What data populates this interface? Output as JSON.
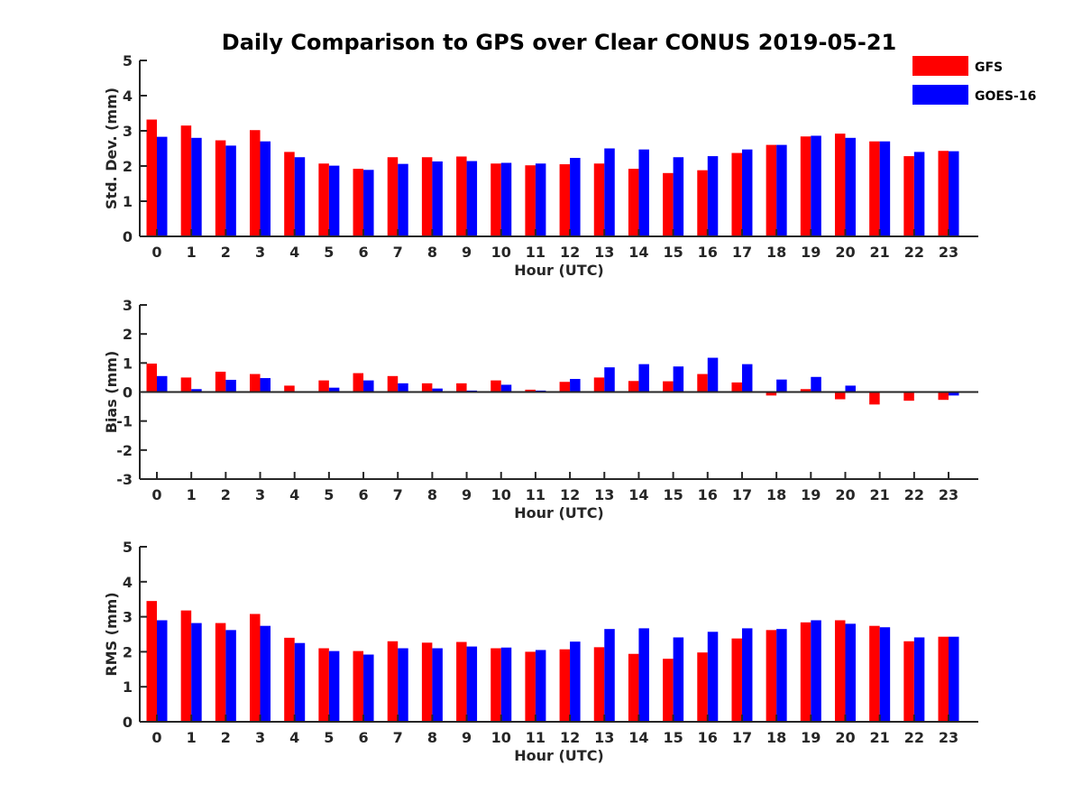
{
  "chart_data": {
    "title": "Daily Comparison to GPS over Clear CONUS 2019-05-21",
    "type": "bar",
    "colors": {
      "GFS": "#ff0000",
      "GOES-16": "#0000ff"
    },
    "legend": {
      "entries": [
        "GFS",
        "GOES-16"
      ],
      "placement": "top-right"
    },
    "panels": [
      {
        "type": "bar",
        "xlabel": "Hour (UTC)",
        "ylabel": "Std. Dev. (mm)",
        "ylim": [
          0,
          5
        ],
        "yticks": [
          "0",
          "1",
          "2",
          "3",
          "4",
          "5"
        ],
        "categories": [
          "0",
          "1",
          "2",
          "3",
          "4",
          "5",
          "6",
          "7",
          "8",
          "9",
          "10",
          "11",
          "12",
          "13",
          "14",
          "15",
          "16",
          "17",
          "18",
          "19",
          "20",
          "21",
          "22",
          "23"
        ],
        "series": [
          {
            "name": "GFS",
            "values": [
              3.32,
              3.15,
              2.73,
              3.02,
              2.4,
              2.07,
              1.92,
              2.25,
              2.25,
              2.27,
              2.07,
              2.02,
              2.05,
              2.07,
              1.92,
              1.8,
              1.88,
              2.37,
              2.6,
              2.84,
              2.92,
              2.7,
              2.28,
              2.43
            ]
          },
          {
            "name": "GOES-16",
            "values": [
              2.83,
              2.8,
              2.58,
              2.7,
              2.25,
              2.01,
              1.89,
              2.06,
              2.13,
              2.14,
              2.09,
              2.07,
              2.23,
              2.5,
              2.47,
              2.25,
              2.28,
              2.47,
              2.6,
              2.86,
              2.8,
              2.7,
              2.4,
              2.42
            ]
          }
        ]
      },
      {
        "type": "bar",
        "xlabel": "Hour (UTC)",
        "ylabel": "Bias (mm)",
        "ylim": [
          -3,
          3
        ],
        "yticks": [
          "-3",
          "-2",
          "-1",
          "0",
          "1",
          "2",
          "3"
        ],
        "categories": [
          "0",
          "1",
          "2",
          "3",
          "4",
          "5",
          "6",
          "7",
          "8",
          "9",
          "10",
          "11",
          "12",
          "13",
          "14",
          "15",
          "16",
          "17",
          "18",
          "19",
          "20",
          "21",
          "22",
          "23"
        ],
        "series": [
          {
            "name": "GFS",
            "values": [
              0.98,
              0.5,
              0.7,
              0.62,
              0.22,
              0.4,
              0.65,
              0.55,
              0.3,
              0.3,
              0.4,
              0.08,
              0.35,
              0.5,
              0.38,
              0.37,
              0.62,
              0.33,
              -0.12,
              0.1,
              -0.25,
              -0.43,
              -0.3,
              -0.27
            ]
          },
          {
            "name": "GOES-16",
            "values": [
              0.55,
              0.1,
              0.42,
              0.48,
              0.03,
              0.15,
              0.4,
              0.3,
              0.12,
              0.05,
              0.25,
              0.05,
              0.45,
              0.85,
              0.96,
              0.88,
              1.18,
              0.96,
              0.43,
              0.52,
              0.22,
              0.02,
              0.03,
              -0.12
            ]
          }
        ]
      },
      {
        "type": "bar",
        "xlabel": "Hour (UTC)",
        "ylabel": "RMS (mm)",
        "ylim": [
          0,
          5
        ],
        "yticks": [
          "0",
          "1",
          "2",
          "3",
          "4",
          "5"
        ],
        "categories": [
          "0",
          "1",
          "2",
          "3",
          "4",
          "5",
          "6",
          "7",
          "8",
          "9",
          "10",
          "11",
          "12",
          "13",
          "14",
          "15",
          "16",
          "17",
          "18",
          "19",
          "20",
          "21",
          "22",
          "23"
        ],
        "series": [
          {
            "name": "GFS",
            "values": [
              3.45,
              3.18,
              2.82,
              3.08,
              2.4,
              2.1,
              2.02,
              2.3,
              2.26,
              2.28,
              2.1,
              2.0,
              2.07,
              2.13,
              1.94,
              1.8,
              1.98,
              2.38,
              2.62,
              2.84,
              2.9,
              2.74,
              2.3,
              2.43
            ]
          },
          {
            "name": "GOES-16",
            "values": [
              2.9,
              2.82,
              2.62,
              2.74,
              2.25,
              2.02,
              1.92,
              2.1,
              2.1,
              2.15,
              2.12,
              2.05,
              2.29,
              2.65,
              2.67,
              2.41,
              2.57,
              2.67,
              2.65,
              2.9,
              2.8,
              2.7,
              2.41,
              2.43
            ]
          }
        ]
      }
    ]
  }
}
